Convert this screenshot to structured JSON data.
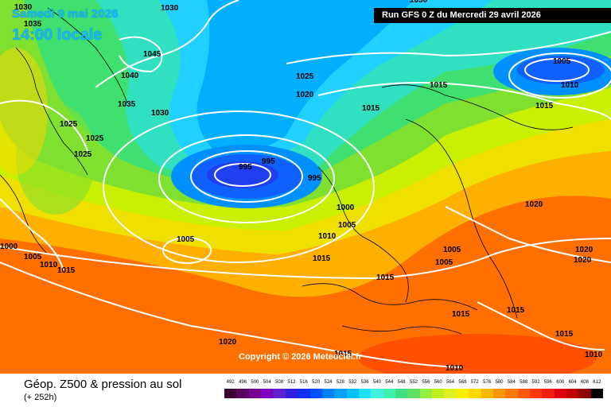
{
  "header": {
    "date_label": "Samedi 9 mai 2026",
    "time_label": "14:00 locale",
    "run_label": "Run GFS 0 Z du Mercredi 29 avril 2026"
  },
  "map": {
    "copyright": "Copyright © 2026 Meteociel.fr",
    "isobar_labels": [
      "1030",
      "1035",
      "1045",
      "1040",
      "1035",
      "1030",
      "1025",
      "1025",
      "1025",
      "1030",
      "1025",
      "1020",
      "1015",
      "1015",
      "1005",
      "1010",
      "1015",
      "995",
      "995",
      "995",
      "1000",
      "1005",
      "1010",
      "1015",
      "1015",
      "1020",
      "1005",
      "1005",
      "1015",
      "1020",
      "1020",
      "1015",
      "1015",
      "1010",
      "1005",
      "1000",
      "1005",
      "1010",
      "1015",
      "1015",
      "1020",
      "1010",
      "1030"
    ]
  },
  "legend": {
    "title": "Géop. Z500 & pression au sol",
    "subtitle": "(+ 252h)",
    "scale_values": [
      "492",
      "496",
      "500",
      "504",
      "508",
      "512",
      "516",
      "520",
      "524",
      "528",
      "532",
      "536",
      "540",
      "544",
      "548",
      "552",
      "556",
      "560",
      "564",
      "568",
      "572",
      "576",
      "580",
      "584",
      "588",
      "592",
      "596",
      "600",
      "604",
      "608",
      "612"
    ],
    "scale_colors": [
      "#3a0030",
      "#5a0060",
      "#7a0090",
      "#8000c0",
      "#6020d0",
      "#3020e0",
      "#1030f0",
      "#0050ff",
      "#0080ff",
      "#00a0ff",
      "#00c0ff",
      "#20e0ff",
      "#40f0e0",
      "#40f0b0",
      "#40e080",
      "#60e060",
      "#90f040",
      "#c0f020",
      "#e0f020",
      "#f8f000",
      "#ffd800",
      "#ffb800",
      "#ff9800",
      "#ff7800",
      "#ff5800",
      "#ff3800",
      "#f02010",
      "#e00010",
      "#c00000",
      "#900000",
      "#000000"
    ]
  }
}
